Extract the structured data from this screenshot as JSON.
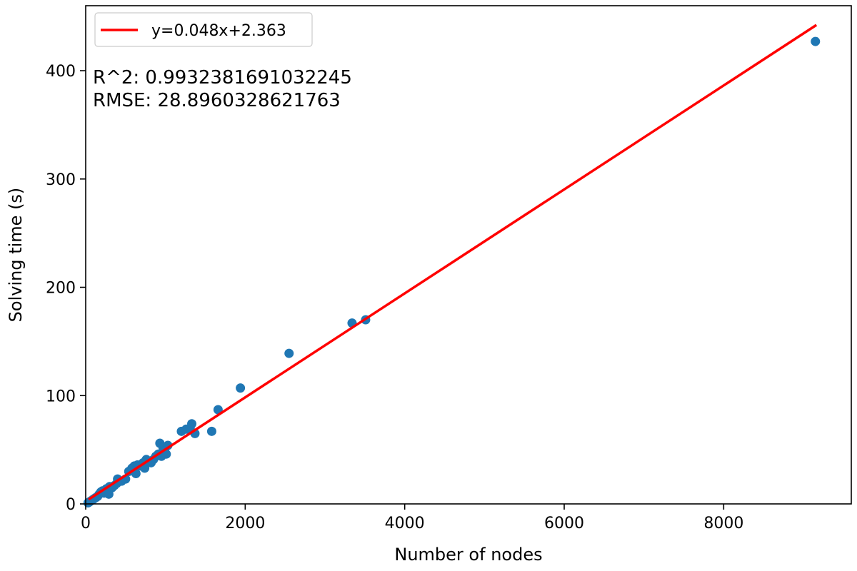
{
  "chart_data": {
    "type": "scatter",
    "xlabel": "Number of nodes",
    "ylabel": "Solving time (s)",
    "xlim": [
      0,
      9600
    ],
    "ylim": [
      0,
      460
    ],
    "xticks": [
      0,
      2000,
      4000,
      6000,
      8000
    ],
    "yticks": [
      0,
      100,
      200,
      300,
      400
    ],
    "xtick_labels": [
      "0",
      "2000",
      "4000",
      "6000",
      "8000"
    ],
    "ytick_labels": [
      "0",
      "100",
      "200",
      "300",
      "400"
    ],
    "grid": false,
    "legend_position": "top-left",
    "annotations": [
      "R^2: 0.9932381691032245",
      "RMSE: 28.8960328621763"
    ],
    "series": [
      {
        "kind": "scatter",
        "color": "#1f77b4",
        "points": [
          [
            30,
            1
          ],
          [
            50,
            2
          ],
          [
            70,
            3
          ],
          [
            90,
            4
          ],
          [
            110,
            5
          ],
          [
            130,
            6
          ],
          [
            150,
            7
          ],
          [
            170,
            9
          ],
          [
            190,
            11
          ],
          [
            210,
            12
          ],
          [
            230,
            10
          ],
          [
            260,
            14
          ],
          [
            290,
            9
          ],
          [
            300,
            16
          ],
          [
            330,
            15
          ],
          [
            360,
            17
          ],
          [
            390,
            19
          ],
          [
            400,
            23
          ],
          [
            450,
            21
          ],
          [
            500,
            23
          ],
          [
            540,
            30
          ],
          [
            580,
            33
          ],
          [
            610,
            35
          ],
          [
            630,
            28
          ],
          [
            650,
            36
          ],
          [
            690,
            35
          ],
          [
            720,
            38
          ],
          [
            740,
            33
          ],
          [
            760,
            41
          ],
          [
            790,
            39
          ],
          [
            820,
            38
          ],
          [
            850,
            41
          ],
          [
            880,
            44
          ],
          [
            910,
            46
          ],
          [
            930,
            56
          ],
          [
            950,
            44
          ],
          [
            970,
            52
          ],
          [
            990,
            49
          ],
          [
            1010,
            46
          ],
          [
            1030,
            54
          ],
          [
            1200,
            67
          ],
          [
            1260,
            69
          ],
          [
            1310,
            70
          ],
          [
            1330,
            74
          ],
          [
            1370,
            65
          ],
          [
            1580,
            67
          ],
          [
            1660,
            87
          ],
          [
            1940,
            107
          ],
          [
            2550,
            139
          ],
          [
            3340,
            167
          ],
          [
            3510,
            170
          ],
          [
            9150,
            427
          ]
        ]
      },
      {
        "kind": "line",
        "name": "y=0.048x+2.363",
        "color": "#ff0000",
        "slope": 0.048,
        "intercept": 2.363,
        "x_range": [
          50,
          9150
        ]
      }
    ]
  }
}
